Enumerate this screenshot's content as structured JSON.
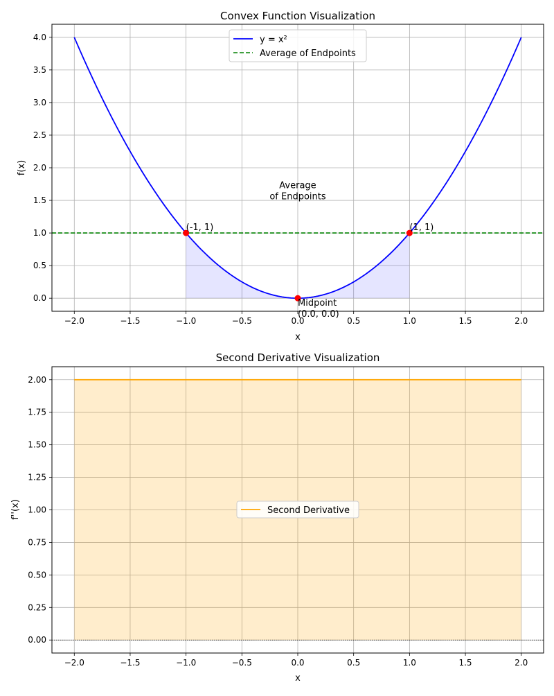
{
  "chart_data": [
    {
      "type": "line",
      "title": "Convex Function Visualization",
      "xlabel": "x",
      "ylabel": "f(x)",
      "xlim": [
        -2.2,
        2.2
      ],
      "ylim": [
        -0.2,
        4.2
      ],
      "xticks": [
        -2.0,
        -1.5,
        -1.0,
        -0.5,
        0.0,
        0.5,
        1.0,
        1.5,
        2.0
      ],
      "xtick_labels": [
        "−2.0",
        "−1.5",
        "−1.0",
        "−0.5",
        "0.0",
        "0.5",
        "1.0",
        "1.5",
        "2.0"
      ],
      "yticks": [
        0.0,
        0.5,
        1.0,
        1.5,
        2.0,
        2.5,
        3.0,
        3.5,
        4.0
      ],
      "ytick_labels": [
        "0.0",
        "0.5",
        "1.0",
        "1.5",
        "2.0",
        "2.5",
        "3.0",
        "3.5",
        "4.0"
      ],
      "grid": true,
      "legend_placement": "upper-center",
      "series": [
        {
          "name": "y = x²",
          "style": "solid",
          "color": "#0000ff",
          "function": "x^2",
          "x_range": [
            -2,
            2
          ]
        },
        {
          "name": "Average of Endpoints",
          "style": "dashed",
          "color": "#008000",
          "y": 1.0
        }
      ],
      "fill": {
        "x_range": [
          -1,
          1
        ],
        "color": "#0000ff",
        "opacity": 0.1
      },
      "points": [
        {
          "x": -1,
          "y": 1,
          "label": "(-1, 1)",
          "color": "#ff0000"
        },
        {
          "x": 1,
          "y": 1,
          "label": "(1, 1)",
          "color": "#ff0000"
        },
        {
          "x": 0,
          "y": 0,
          "label_lines": [
            "Midpoint",
            "(0.0, 0.0)"
          ],
          "color": "#ff0000"
        }
      ],
      "text_annotation": {
        "x": 0,
        "y": 1.6,
        "lines": [
          "Average",
          "of Endpoints"
        ],
        "color": "#008000"
      }
    },
    {
      "type": "area",
      "title": "Second Derivative Visualization",
      "xlabel": "x",
      "ylabel": "f''(x)",
      "xlim": [
        -2.2,
        2.2
      ],
      "ylim": [
        -0.1,
        2.1
      ],
      "xticks": [
        -2.0,
        -1.5,
        -1.0,
        -0.5,
        0.0,
        0.5,
        1.0,
        1.5,
        2.0
      ],
      "xtick_labels": [
        "−2.0",
        "−1.5",
        "−1.0",
        "−0.5",
        "0.0",
        "0.5",
        "1.0",
        "1.5",
        "2.0"
      ],
      "yticks": [
        0.0,
        0.25,
        0.5,
        0.75,
        1.0,
        1.25,
        1.5,
        1.75,
        2.0
      ],
      "ytick_labels": [
        "0.00",
        "0.25",
        "0.50",
        "0.75",
        "1.00",
        "1.25",
        "1.50",
        "1.75",
        "2.00"
      ],
      "grid": true,
      "legend_placement": "center",
      "series": [
        {
          "name": "Second Derivative",
          "style": "solid",
          "color": "#ffa500",
          "x": [
            -2,
            2
          ],
          "y": [
            2,
            2
          ]
        }
      ],
      "fill": {
        "x_range": [
          -2,
          2
        ],
        "color": "#ffa500",
        "opacity": 0.2
      },
      "baseline": {
        "y": 0,
        "style": "dotted",
        "color": "#000000"
      }
    }
  ]
}
